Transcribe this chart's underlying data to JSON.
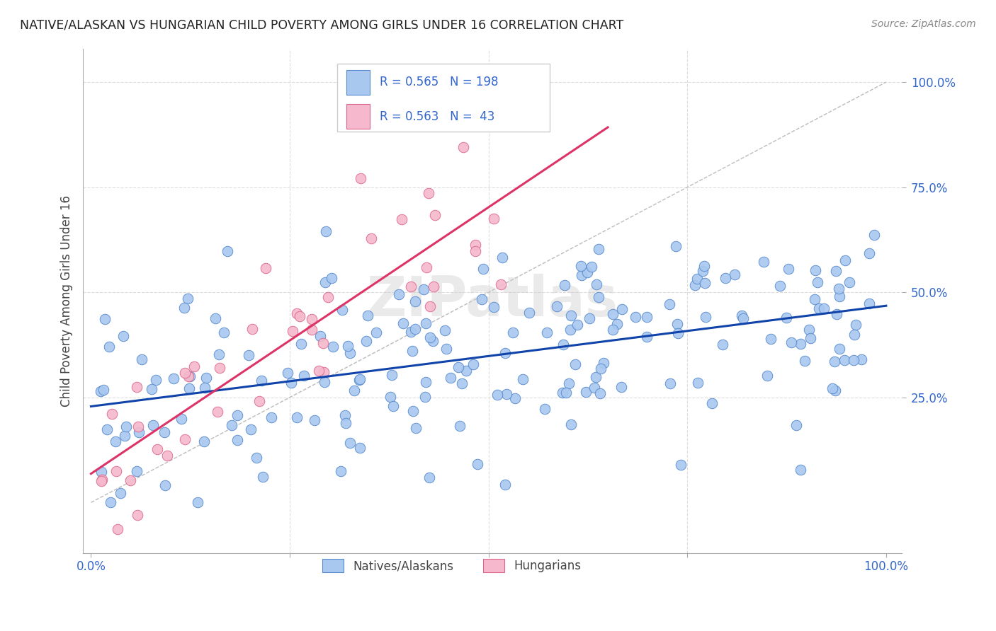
{
  "title": "NATIVE/ALASKAN VS HUNGARIAN CHILD POVERTY AMONG GIRLS UNDER 16 CORRELATION CHART",
  "source": "Source: ZipAtlas.com",
  "ylabel": "Child Poverty Among Girls Under 16",
  "native_R": 0.565,
  "native_N": 198,
  "hungarian_R": 0.563,
  "hungarian_N": 43,
  "native_color": "#A8C8F0",
  "native_edge_color": "#5588CC",
  "native_line_color": "#1144AA",
  "hungarian_color": "#F5B8CC",
  "hungarian_edge_color": "#DD6688",
  "hungarian_line_color": "#DD3366",
  "diagonal_color": "#BBBBBB",
  "background_color": "#FFFFFF",
  "grid_color": "#DDDDDD",
  "title_color": "#222222",
  "tick_label_color": "#3366CC",
  "legend_label_color": "#3366CC",
  "watermark": "ZIPatlas",
  "native_seed": 12,
  "hungarian_seed": 99
}
